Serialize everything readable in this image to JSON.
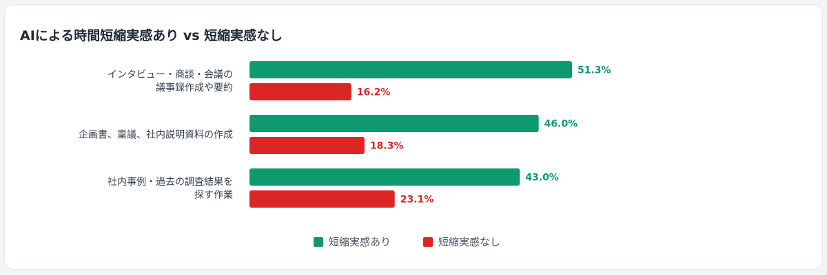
{
  "chart_data": {
    "type": "bar",
    "orientation": "horizontal",
    "title": "AIによる時間短縮実感あり vs 短縮実感なし",
    "xlabel": "",
    "ylabel": "",
    "xlim": [
      0,
      60
    ],
    "grid": false,
    "legend_position": "bottom",
    "value_suffix": "%",
    "categories": [
      [
        "インタビュー・商談・会議の",
        "議事録作成や要約"
      ],
      [
        "企画書、稟議、社内説明資料の作成"
      ],
      [
        "社内事例・過去の調査結果を",
        "探す作業"
      ]
    ],
    "series": [
      {
        "name": "短縮実感あり",
        "color": "#0e9a6e",
        "values": [
          51.3,
          46.0,
          43.0
        ]
      },
      {
        "name": "短縮実感なし",
        "color": "#dc2626",
        "values": [
          16.2,
          18.3,
          23.1
        ]
      }
    ]
  }
}
